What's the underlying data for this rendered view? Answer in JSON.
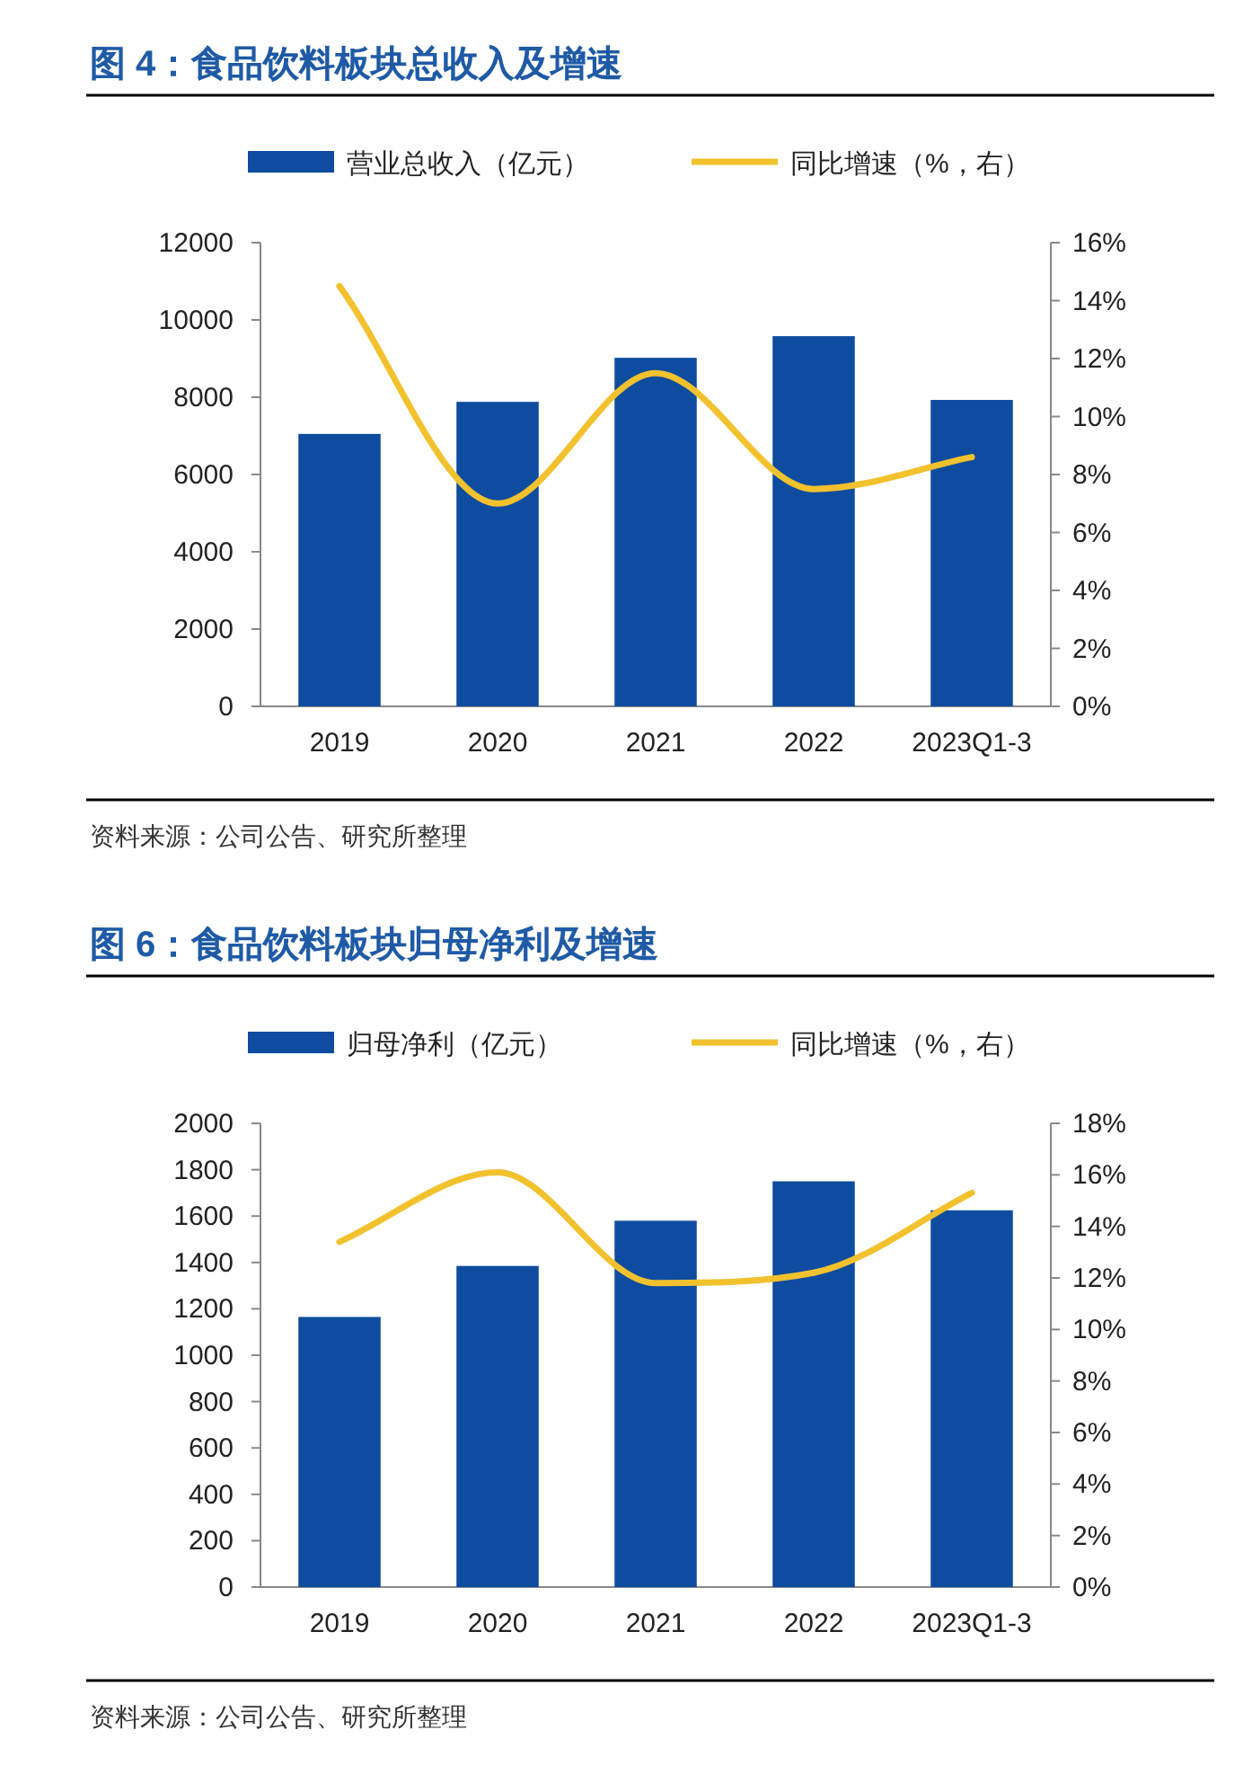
{
  "chart_data": [
    {
      "type": "bar",
      "title": "图 4：食品饮料板块总收入及增速",
      "categories": [
        "2019",
        "2020",
        "2021",
        "2022",
        "2023Q1-3"
      ],
      "series": [
        {
          "name": "营业总收入（亿元）",
          "type": "bar",
          "color": "#0e4c9f",
          "values": [
            7050,
            7880,
            9020,
            9580,
            7930
          ]
        },
        {
          "name": "同比增速（%，右）",
          "type": "line",
          "axis": "y2",
          "color": "#f2c12e",
          "values": [
            14.5,
            7.0,
            11.5,
            7.5,
            8.6
          ]
        }
      ],
      "ylim": [
        0,
        12000
      ],
      "yticks": [
        0,
        2000,
        4000,
        6000,
        8000,
        10000,
        12000
      ],
      "y2lim": [
        0,
        16
      ],
      "y2ticks": [
        {
          "value": 0,
          "label": "0%"
        },
        {
          "value": 2,
          "label": "2%"
        },
        {
          "value": 4,
          "label": "4%"
        },
        {
          "value": 6,
          "label": "6%"
        },
        {
          "value": 8,
          "label": "8%"
        },
        {
          "value": 10,
          "label": "10%"
        },
        {
          "value": 12,
          "label": "12%"
        },
        {
          "value": 14,
          "label": "14%"
        },
        {
          "value": 16,
          "label": "16%"
        }
      ],
      "legend": "top",
      "grid": false,
      "marker": "none",
      "annotations": [
        "资料来源：公司公告、研究所整理"
      ]
    },
    {
      "type": "bar",
      "title": "图 6：食品饮料板块归母净利及增速",
      "categories": [
        "2019",
        "2020",
        "2021",
        "2022",
        "2023Q1-3"
      ],
      "series": [
        {
          "name": "归母净利（亿元）",
          "type": "bar",
          "color": "#0e4c9f",
          "values": [
            1165,
            1385,
            1580,
            1750,
            1625
          ]
        },
        {
          "name": "同比增速（%，右）",
          "type": "line",
          "axis": "y2",
          "color": "#f2c12e",
          "values": [
            13.4,
            16.1,
            11.8,
            12.2,
            15.3
          ]
        }
      ],
      "ylim": [
        0,
        2000
      ],
      "yticks": [
        0,
        200,
        400,
        600,
        800,
        1000,
        1200,
        1400,
        1600,
        1800,
        2000
      ],
      "y2lim": [
        0,
        18
      ],
      "y2ticks": [
        {
          "value": 0,
          "label": "0%"
        },
        {
          "value": 2,
          "label": "2%"
        },
        {
          "value": 4,
          "label": "4%"
        },
        {
          "value": 6,
          "label": "6%"
        },
        {
          "value": 8,
          "label": "8%"
        },
        {
          "value": 10,
          "label": "10%"
        },
        {
          "value": 12,
          "label": "12%"
        },
        {
          "value": 14,
          "label": "14%"
        },
        {
          "value": 16,
          "label": "16%"
        },
        {
          "value": 18,
          "label": "18%"
        }
      ],
      "legend": "top",
      "grid": false,
      "marker": "none",
      "annotations": [
        "资料来源：公司公告、研究所整理"
      ]
    }
  ]
}
